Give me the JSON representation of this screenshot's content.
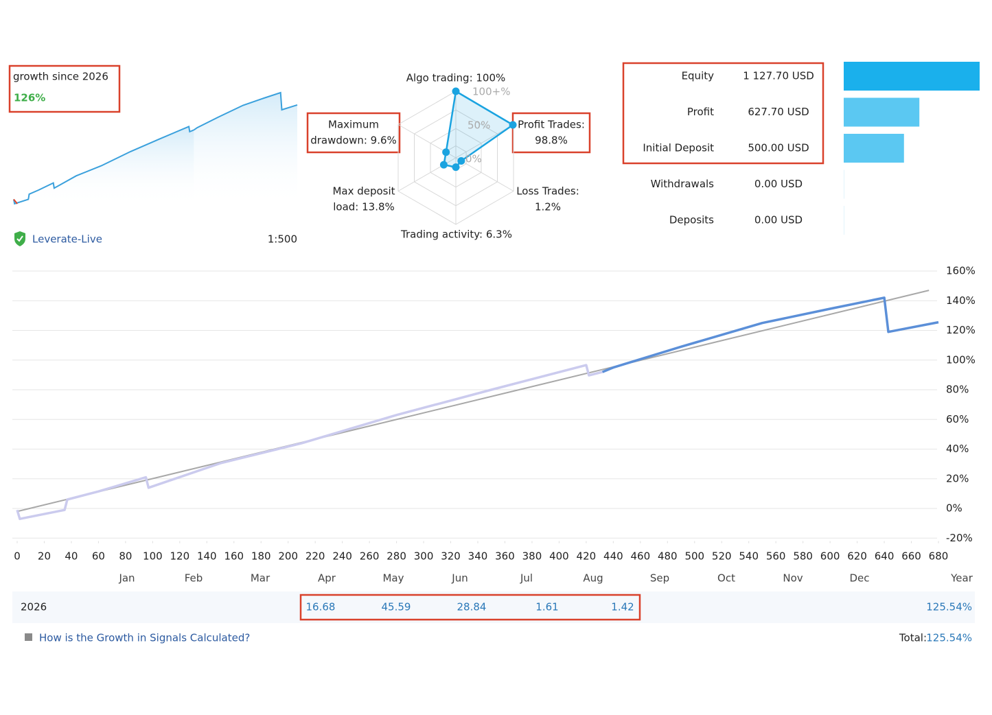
{
  "summary": {
    "growth_label": "growth since 2026",
    "growth_value": "126%",
    "account": "Leverate-Live",
    "leverage": "1:500"
  },
  "radar": {
    "axes": [
      {
        "label_lines": [
          "Algo trading: 100%"
        ],
        "value": 100
      },
      {
        "label_lines": [
          "Profit Trades:",
          "98.8%"
        ],
        "value": 98.8
      },
      {
        "label_lines": [
          "Loss Trades:",
          "1.2%"
        ],
        "value": 1.2
      },
      {
        "label_lines": [
          "Trading activity: 6.3%"
        ],
        "value": 6.3
      },
      {
        "label_lines": [
          "Max deposit",
          "load: 13.8%"
        ],
        "value": 13.8
      },
      {
        "label_lines": [
          "Maximum",
          "drawdown: 9.6%"
        ],
        "value": 9.6
      }
    ],
    "ring_labels": [
      "100+%",
      "50%",
      "0%"
    ]
  },
  "stats": [
    {
      "label": "Equity",
      "value": 1127.7,
      "value_label": "1 127.70 USD"
    },
    {
      "label": "Profit",
      "value": 627.7,
      "value_label": "627.70 USD"
    },
    {
      "label": "Initial Deposit",
      "value": 500.0,
      "value_label": "500.00 USD"
    },
    {
      "label": "Withdrawals",
      "value": 0,
      "value_label": "0.00 USD"
    },
    {
      "label": "Deposits",
      "value": 0,
      "value_label": "0.00 USD"
    }
  ],
  "chart_data": {
    "type": "line",
    "x": [
      0,
      2,
      35,
      37,
      60,
      95,
      97,
      150,
      210,
      280,
      350,
      420,
      422,
      432,
      440,
      490,
      550,
      600,
      640,
      643,
      680
    ],
    "series": [
      {
        "color": "#cbcbee",
        "values": [
          -1,
          -7,
          -1,
          6,
          11.5,
          21,
          14,
          30.5,
          44,
          63,
          80,
          96.6,
          89.7,
          92,
          null,
          null,
          null,
          null,
          null,
          null,
          null
        ]
      },
      {
        "color": "#5b8fd8",
        "values": [
          null,
          null,
          null,
          null,
          null,
          null,
          null,
          null,
          null,
          null,
          null,
          null,
          null,
          92,
          95,
          109,
          125,
          134.6,
          142,
          119,
          125.5
        ]
      }
    ],
    "trend": {
      "color": "#a8a8a8",
      "x": [
        0,
        673
      ],
      "values": [
        -2,
        147
      ]
    },
    "xlim": [
      0,
      680
    ],
    "xticks": [
      0,
      20,
      40,
      60,
      80,
      100,
      120,
      140,
      160,
      180,
      200,
      220,
      240,
      260,
      280,
      300,
      320,
      340,
      360,
      380,
      400,
      420,
      440,
      460,
      480,
      500,
      520,
      540,
      560,
      580,
      600,
      620,
      640,
      660,
      680
    ],
    "ylim": [
      -22,
      162
    ],
    "yticks": [
      {
        "value": -20,
        "label": "-20%"
      },
      {
        "value": 0,
        "label": "0%"
      },
      {
        "value": 20,
        "label": "20%"
      },
      {
        "value": 40,
        "label": "40%"
      },
      {
        "value": 60,
        "label": "60%"
      },
      {
        "value": 80,
        "label": "80%"
      },
      {
        "value": 100,
        "label": "100%"
      },
      {
        "value": 120,
        "label": "120%"
      },
      {
        "value": 140,
        "label": "140%"
      },
      {
        "value": 160,
        "label": "160%"
      }
    ],
    "grid": true,
    "period_labels": [
      "Jan",
      "Feb",
      "Mar",
      "Apr",
      "May",
      "Jun",
      "Jul",
      "Aug",
      "Sep",
      "Oct",
      "Nov",
      "Dec",
      "Year"
    ]
  },
  "year_row": {
    "year": "2026",
    "values": [
      "16.68",
      "45.59",
      "28.84",
      "1.61",
      "1.42"
    ],
    "total": "125.54%"
  },
  "footer": {
    "link": "How is the Growth in Signals Calculated?",
    "total_label": "Total:",
    "total_value": "125.54%"
  }
}
